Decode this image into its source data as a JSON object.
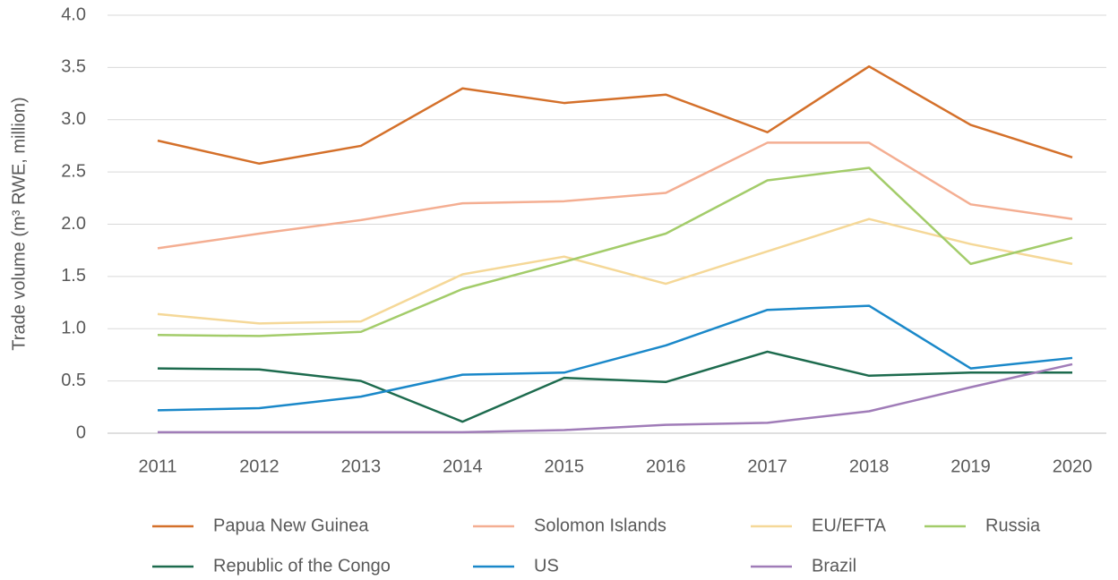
{
  "chart_data": {
    "type": "line",
    "ylabel": "Trade volume (m³ RWE, million)",
    "categories": [
      "2011",
      "2012",
      "2013",
      "2014",
      "2015",
      "2016",
      "2017",
      "2018",
      "2019",
      "2020"
    ],
    "series": [
      {
        "name": "Papua New Guinea",
        "color": "#d4702a",
        "values": [
          2.8,
          2.58,
          2.75,
          3.3,
          3.16,
          3.24,
          2.88,
          3.51,
          2.95,
          2.64
        ]
      },
      {
        "name": "Solomon Islands",
        "color": "#f4ae92",
        "values": [
          1.77,
          1.91,
          2.04,
          2.2,
          2.22,
          2.3,
          2.78,
          2.78,
          2.19,
          2.05
        ]
      },
      {
        "name": "EU/EFTA",
        "color": "#f5d898",
        "values": [
          1.14,
          1.05,
          1.07,
          1.52,
          1.69,
          1.43,
          1.74,
          2.05,
          1.81,
          1.62
        ]
      },
      {
        "name": "Russia",
        "color": "#a3cc6a",
        "values": [
          0.94,
          0.93,
          0.97,
          1.38,
          1.64,
          1.91,
          2.42,
          2.54,
          1.62,
          1.87
        ]
      },
      {
        "name": "Republic of the Congo",
        "color": "#1d6b4e",
        "values": [
          0.62,
          0.61,
          0.5,
          0.11,
          0.53,
          0.49,
          0.78,
          0.55,
          0.58,
          0.58
        ]
      },
      {
        "name": "US",
        "color": "#1a88c9",
        "values": [
          0.22,
          0.24,
          0.35,
          0.56,
          0.58,
          0.84,
          1.18,
          1.22,
          0.62,
          0.72
        ]
      },
      {
        "name": "Brazil",
        "color": "#a07cb8",
        "values": [
          0.01,
          0.01,
          0.01,
          0.01,
          0.03,
          0.08,
          0.1,
          0.21,
          0.44,
          0.66
        ]
      }
    ],
    "ylim": [
      0,
      4
    ],
    "yticks": [
      0,
      0.5,
      {
        "value": 1,
        "label": "1.0"
      },
      1.5,
      {
        "value": 2,
        "label": "2.0"
      },
      2.5,
      {
        "value": 3,
        "label": "3.0"
      },
      3.5,
      {
        "value": 4,
        "label": "4.0"
      }
    ],
    "grid": true,
    "legend": "bottom"
  }
}
